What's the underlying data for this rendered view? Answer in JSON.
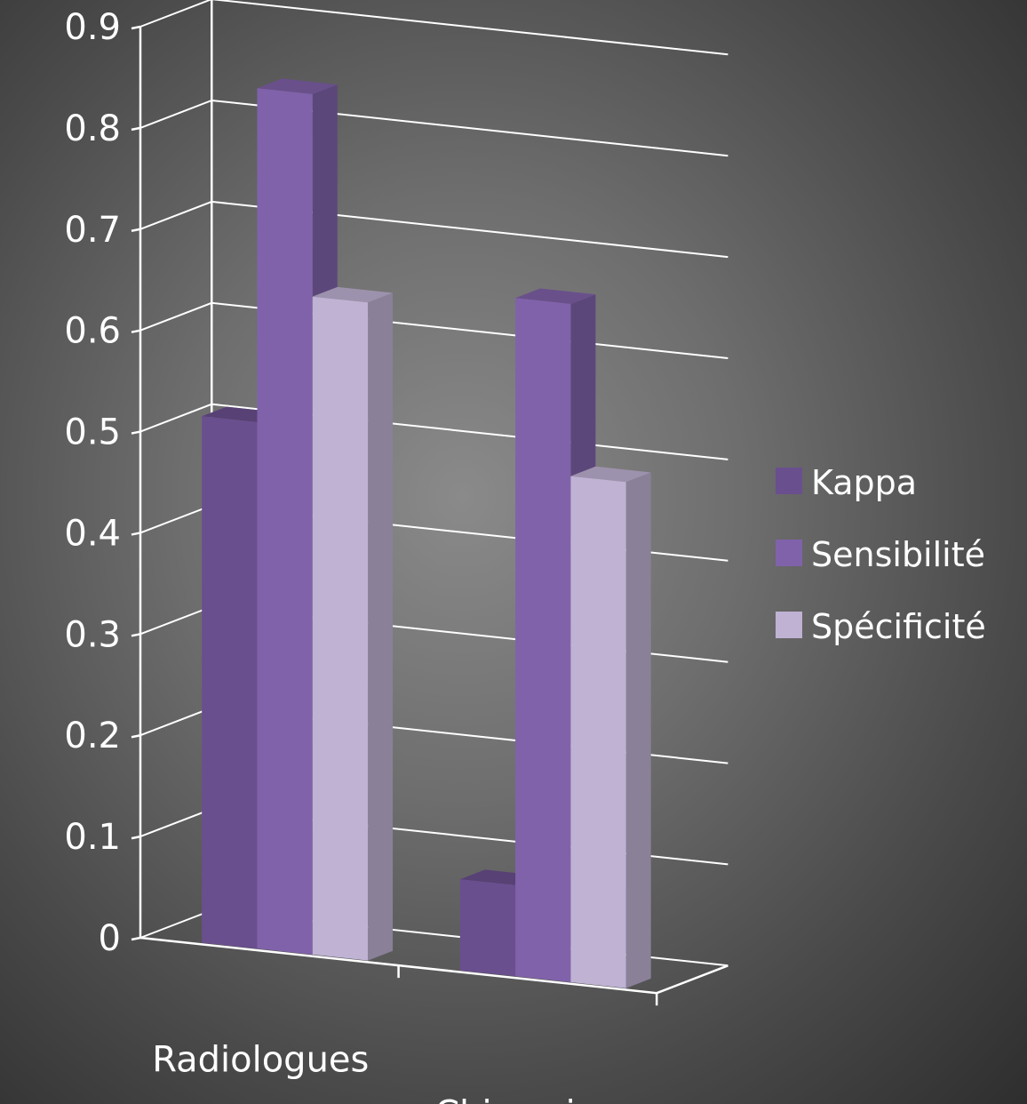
{
  "chart_data": {
    "type": "bar",
    "variant": "3d-clustered-column",
    "title": "",
    "xlabel": "",
    "ylabel": "",
    "categories": [
      "Radiologues",
      "Chirurgiens"
    ],
    "series": [
      {
        "name": "Kappa",
        "values": [
          0.52,
          0.09
        ],
        "color": "#6a4f8f"
      },
      {
        "name": "Sensibilité",
        "values": [
          0.85,
          0.67
        ],
        "color": "#8062aa"
      },
      {
        "name": "Spécificité",
        "values": [
          0.65,
          0.5
        ],
        "color": "#bfb2d3"
      }
    ],
    "ylim": [
      0,
      0.9
    ],
    "yticks": [
      "0",
      "0.1",
      "0.2",
      "0.3",
      "0.4",
      "0.5",
      "0.6",
      "0.7",
      "0.8",
      "0.9"
    ],
    "grid": true,
    "legend_position": "right"
  }
}
